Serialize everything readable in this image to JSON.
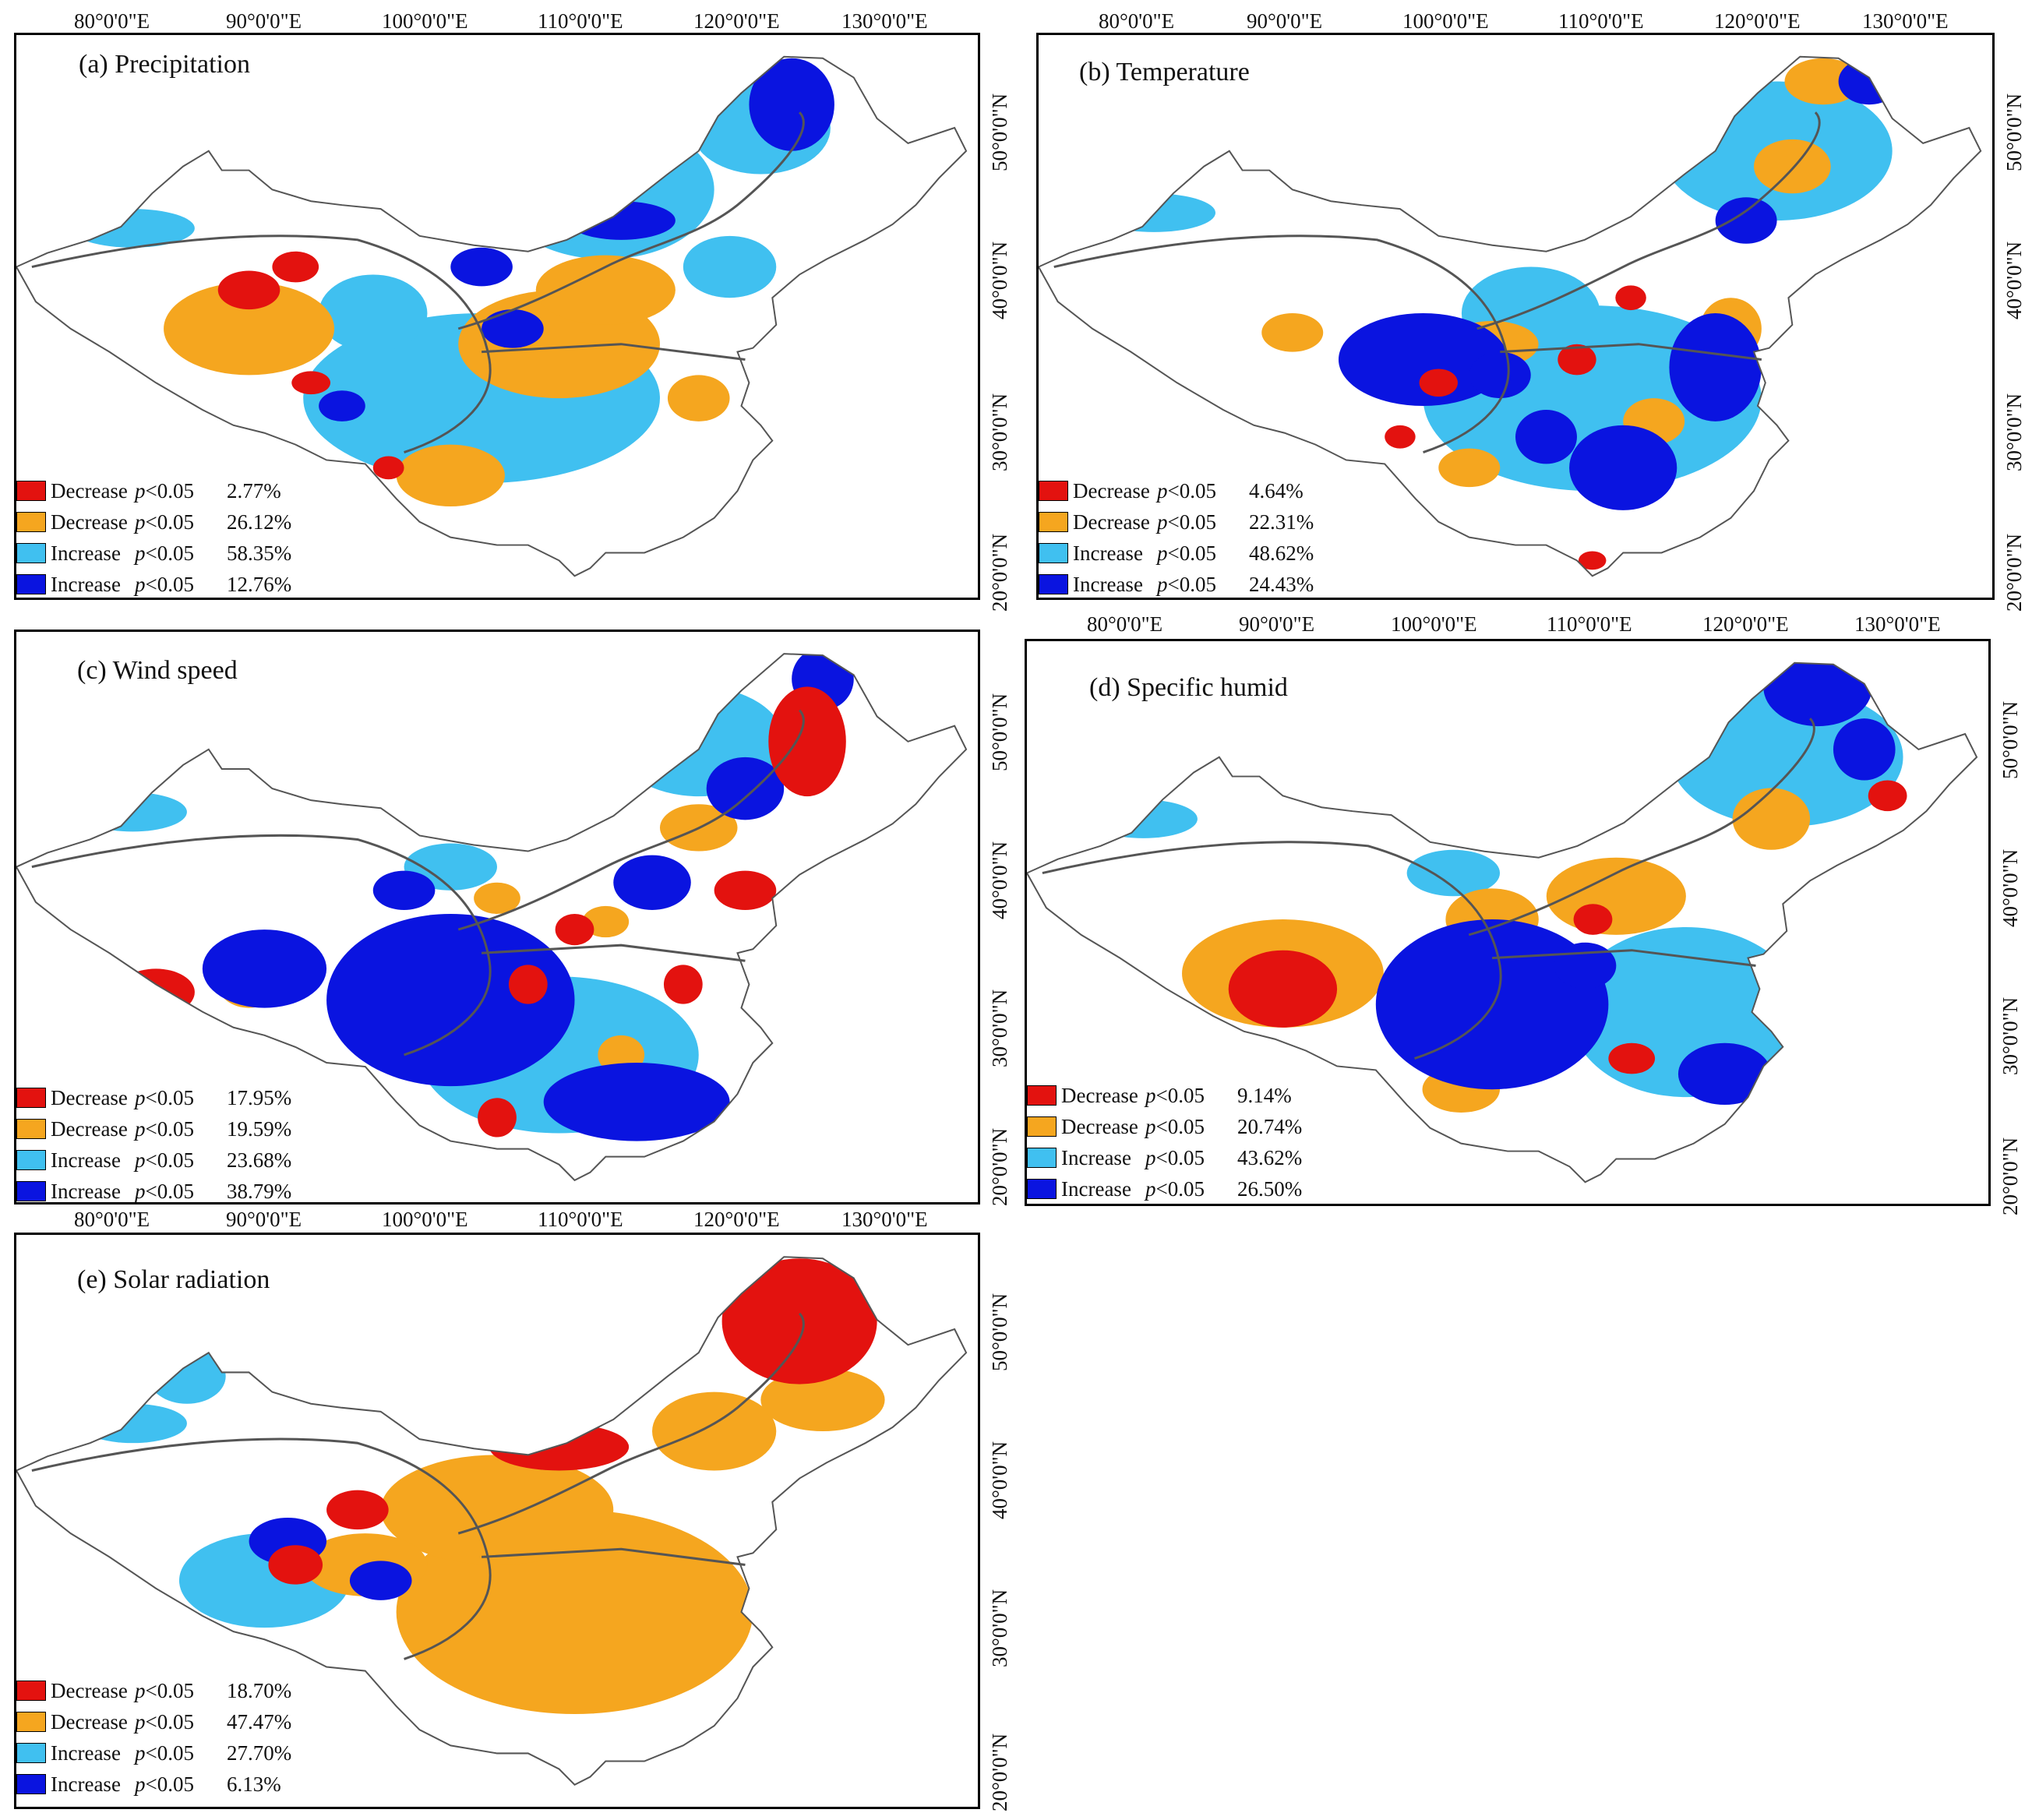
{
  "figure": {
    "longitude_ticks": [
      "80°0'0\"E",
      "90°0'0\"E",
      "100°0'0\"E",
      "110°0'0\"E",
      "120°0'0\"E",
      "130°0'0\"E"
    ],
    "latitude_ticks": [
      "50°0'0\"N",
      "40°0'0\"N",
      "30°0'0\"N",
      "20°0'0\"N"
    ],
    "colors": {
      "significant_decrease": "#e3120f",
      "decrease": "#f5a61f",
      "increase": "#40c0f0",
      "significant_increase": "#0a14e0",
      "outline": "#555555"
    },
    "legend_labels": [
      "Decrease",
      "Decrease",
      "Increase",
      "Increase"
    ],
    "legend_p": "p<0.05",
    "panels": [
      {
        "id": "a",
        "title": "(a) Precipitation",
        "percentages": [
          "2.77%",
          "26.12%",
          "58.35%",
          "12.76%"
        ]
      },
      {
        "id": "b",
        "title": "(b) Temperature",
        "percentages": [
          "4.64%",
          "22.31%",
          "48.62%",
          "24.43%"
        ]
      },
      {
        "id": "c",
        "title": "(c) Wind speed",
        "percentages": [
          "17.95%",
          "19.59%",
          "23.68%",
          "38.79%"
        ]
      },
      {
        "id": "d",
        "title": "(d) Specific humid",
        "percentages": [
          "9.14%",
          "20.74%",
          "43.62%",
          "26.50%"
        ]
      },
      {
        "id": "e",
        "title": "(e) Solar radiation",
        "percentages": [
          "18.70%",
          "47.47%",
          "27.70%",
          "6.13%"
        ]
      }
    ]
  },
  "chart_data": [
    {
      "type": "map",
      "title": "(a) Precipitation",
      "categories": [
        "Decrease p<0.05",
        "Decrease p<0.05",
        "Increase p<0.05",
        "Increase p<0.05"
      ],
      "values": [
        2.77,
        26.12,
        58.35,
        12.76
      ],
      "unit": "%"
    },
    {
      "type": "map",
      "title": "(b) Temperature",
      "categories": [
        "Decrease p<0.05",
        "Decrease p<0.05",
        "Increase p<0.05",
        "Increase p<0.05"
      ],
      "values": [
        4.64,
        22.31,
        48.62,
        24.43
      ],
      "unit": "%"
    },
    {
      "type": "map",
      "title": "(c) Wind speed",
      "categories": [
        "Decrease p<0.05",
        "Decrease p<0.05",
        "Increase p<0.05",
        "Increase p<0.05"
      ],
      "values": [
        17.95,
        19.59,
        23.68,
        38.79
      ],
      "unit": "%"
    },
    {
      "type": "map",
      "title": "(d) Specific humid",
      "categories": [
        "Decrease p<0.05",
        "Decrease p<0.05",
        "Increase p<0.05",
        "Increase p<0.05"
      ],
      "values": [
        9.14,
        20.74,
        43.62,
        26.5
      ],
      "unit": "%"
    },
    {
      "type": "map",
      "title": "(e) Solar radiation",
      "categories": [
        "Decrease p<0.05",
        "Decrease p<0.05",
        "Increase p<0.05",
        "Increase p<0.05"
      ],
      "values": [
        18.7,
        47.47,
        27.7,
        6.13
      ],
      "unit": "%"
    }
  ]
}
